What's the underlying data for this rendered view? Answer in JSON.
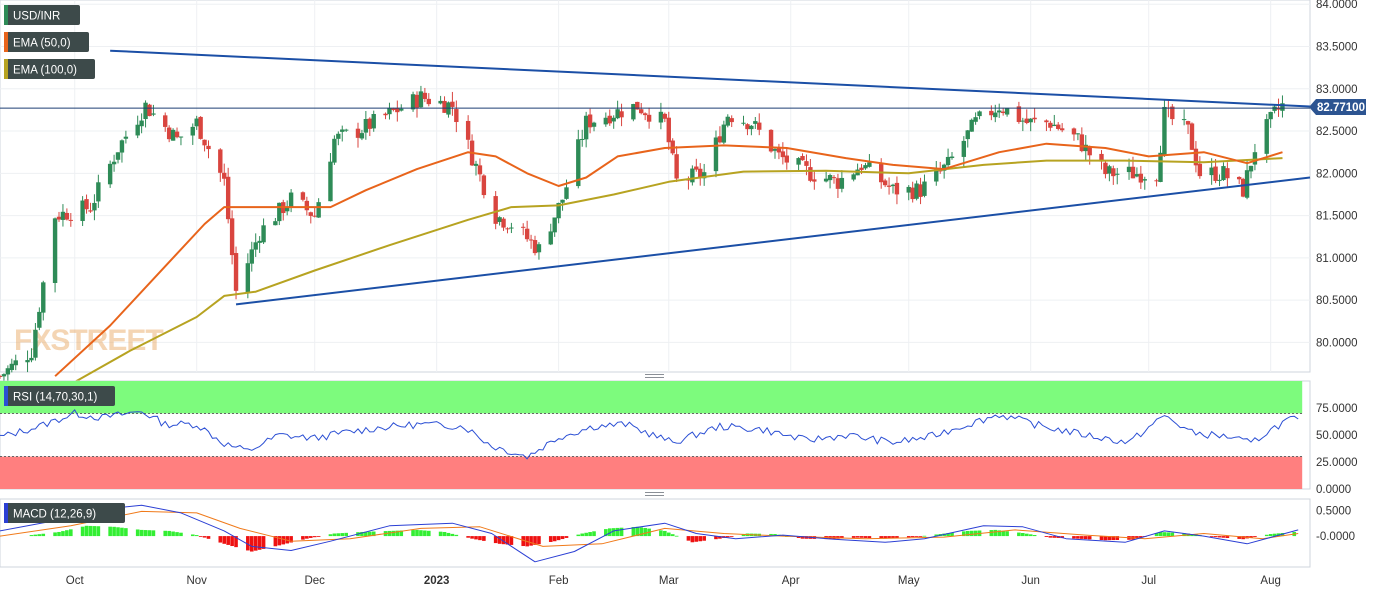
{
  "chart_data": [
    {
      "type": "candlestick",
      "symbol_label": "USD/INR",
      "last_price_label": "82.77100",
      "last_price": 82.771,
      "y_ticks": [
        "84.0000",
        "83.5000",
        "83.0000",
        "82.5000",
        "82.0000",
        "81.5000",
        "81.0000",
        "80.5000",
        "80.0000"
      ],
      "y_tick_values": [
        84.0,
        83.5,
        83.0,
        82.5,
        82.0,
        81.5,
        81.0,
        80.5,
        80.0
      ],
      "ylim": [
        79.65,
        84.05
      ],
      "x_labels": [
        "Oct",
        "Nov",
        "Dec",
        "2023",
        "Feb",
        "Mar",
        "Apr",
        "May",
        "Jun",
        "Jul",
        "Aug"
      ],
      "x_label_dates": [
        "2022-10-01",
        "2022-11-01",
        "2022-12-01",
        "2023-01-01",
        "2023-02-01",
        "2023-03-01",
        "2023-04-01",
        "2023-05-01",
        "2023-06-01",
        "2023-07-01",
        "2023-08-01"
      ],
      "x_range": [
        "2022-09-12",
        "2023-08-11"
      ],
      "price_points": [
        [
          "2022-09-12",
          79.6
        ],
        [
          "2022-09-20",
          79.9
        ],
        [
          "2022-09-26",
          81.5
        ],
        [
          "2022-10-05",
          81.6
        ],
        [
          "2022-10-12",
          82.3
        ],
        [
          "2022-10-19",
          82.8
        ],
        [
          "2022-10-21",
          82.7
        ],
        [
          "2022-10-27",
          82.4
        ],
        [
          "2022-11-01",
          82.6
        ],
        [
          "2022-11-04",
          82.3
        ],
        [
          "2022-11-08",
          81.9
        ],
        [
          "2022-11-11",
          80.6
        ],
        [
          "2022-11-17",
          81.3
        ],
        [
          "2022-11-25",
          81.7
        ],
        [
          "2022-12-01",
          81.5
        ],
        [
          "2022-12-06",
          82.4
        ],
        [
          "2022-12-12",
          82.5
        ],
        [
          "2022-12-20",
          82.7
        ],
        [
          "2022-12-28",
          82.9
        ],
        [
          "2023-01-05",
          82.8
        ],
        [
          "2023-01-10",
          82.2
        ],
        [
          "2023-01-16",
          81.5
        ],
        [
          "2023-01-20",
          81.4
        ],
        [
          "2023-01-27",
          81.1
        ],
        [
          "2023-02-02",
          81.7
        ],
        [
          "2023-02-08",
          82.6
        ],
        [
          "2023-02-14",
          82.7
        ],
        [
          "2023-02-21",
          82.8
        ],
        [
          "2023-02-28",
          82.6
        ],
        [
          "2023-03-03",
          81.9
        ],
        [
          "2023-03-10",
          82.0
        ],
        [
          "2023-03-16",
          82.7
        ],
        [
          "2023-03-22",
          82.6
        ],
        [
          "2023-03-29",
          82.2
        ],
        [
          "2023-04-06",
          82.0
        ],
        [
          "2023-04-13",
          81.9
        ],
        [
          "2023-04-19",
          82.1
        ],
        [
          "2023-04-27",
          81.8
        ],
        [
          "2023-05-04",
          81.8
        ],
        [
          "2023-05-11",
          82.1
        ],
        [
          "2023-05-18",
          82.6
        ],
        [
          "2023-05-24",
          82.8
        ],
        [
          "2023-05-31",
          82.6
        ],
        [
          "2023-06-06",
          82.6
        ],
        [
          "2023-06-13",
          82.4
        ],
        [
          "2023-06-20",
          82.0
        ],
        [
          "2023-06-27",
          82.0
        ],
        [
          "2023-07-03",
          82.0
        ],
        [
          "2023-07-05",
          82.7
        ],
        [
          "2023-07-11",
          82.5
        ],
        [
          "2023-07-14",
          82.0
        ],
        [
          "2023-07-20",
          82.0
        ],
        [
          "2023-07-25",
          81.8
        ],
        [
          "2023-07-28",
          82.3
        ],
        [
          "2023-08-02",
          82.7
        ],
        [
          "2023-08-04",
          82.8
        ]
      ],
      "ema_50": [
        [
          "2022-09-26",
          79.6
        ],
        [
          "2022-10-10",
          80.2
        ],
        [
          "2022-10-24",
          80.9
        ],
        [
          "2022-11-03",
          81.4
        ],
        [
          "2022-11-08",
          81.6
        ],
        [
          "2022-11-11",
          81.6
        ],
        [
          "2022-11-17",
          81.6
        ],
        [
          "2022-11-25",
          81.6
        ],
        [
          "2022-12-05",
          81.6
        ],
        [
          "2022-12-14",
          81.8
        ],
        [
          "2022-12-27",
          82.05
        ],
        [
          "2023-01-09",
          82.25
        ],
        [
          "2023-01-16",
          82.2
        ],
        [
          "2023-01-24",
          82.0
        ],
        [
          "2023-02-01",
          81.85
        ],
        [
          "2023-02-08",
          81.95
        ],
        [
          "2023-02-16",
          82.2
        ],
        [
          "2023-02-28",
          82.3
        ],
        [
          "2023-03-15",
          82.33
        ],
        [
          "2023-03-31",
          82.3
        ],
        [
          "2023-04-15",
          82.18
        ],
        [
          "2023-04-27",
          82.1
        ],
        [
          "2023-05-10",
          82.05
        ],
        [
          "2023-05-24",
          82.25
        ],
        [
          "2023-06-05",
          82.35
        ],
        [
          "2023-06-20",
          82.3
        ],
        [
          "2023-07-01",
          82.2
        ],
        [
          "2023-07-15",
          82.25
        ],
        [
          "2023-07-26",
          82.12
        ],
        [
          "2023-08-04",
          82.25
        ]
      ],
      "ema_100": [
        [
          "2022-09-26",
          79.4
        ],
        [
          "2022-10-15",
          79.9
        ],
        [
          "2022-11-01",
          80.3
        ],
        [
          "2022-11-08",
          80.55
        ],
        [
          "2022-11-16",
          80.6
        ],
        [
          "2022-12-01",
          80.85
        ],
        [
          "2022-12-20",
          81.15
        ],
        [
          "2023-01-09",
          81.45
        ],
        [
          "2023-01-20",
          81.6
        ],
        [
          "2023-02-01",
          81.62
        ],
        [
          "2023-02-15",
          81.75
        ],
        [
          "2023-03-01",
          81.9
        ],
        [
          "2023-03-20",
          82.02
        ],
        [
          "2023-04-10",
          82.03
        ],
        [
          "2023-05-01",
          82.0
        ],
        [
          "2023-05-20",
          82.1
        ],
        [
          "2023-06-05",
          82.15
        ],
        [
          "2023-06-25",
          82.15
        ],
        [
          "2023-07-15",
          82.13
        ],
        [
          "2023-08-04",
          82.18
        ]
      ],
      "trendline_upper": [
        [
          "2022-10-10",
          83.45
        ],
        [
          "2023-08-11",
          82.79
        ]
      ],
      "trendline_lower": [
        [
          "2022-11-11",
          80.45
        ],
        [
          "2023-08-11",
          81.95
        ]
      ],
      "horizontal_line": 82.771
    },
    {
      "type": "line",
      "indicator_label": "RSI (14,70,30,1)",
      "y_ticks": [
        "75.0000",
        "50.0000",
        "25.0000",
        "0.0000"
      ],
      "y_tick_values": [
        75,
        50,
        25,
        0
      ],
      "ylim": [
        0,
        100
      ],
      "overbought": 70,
      "oversold": 30,
      "rsi_points": [
        [
          "2022-09-12",
          48
        ],
        [
          "2022-09-22",
          58
        ],
        [
          "2022-10-01",
          70
        ],
        [
          "2022-10-08",
          66
        ],
        [
          "2022-10-18",
          72
        ],
        [
          "2022-10-24",
          60
        ],
        [
          "2022-11-01",
          60
        ],
        [
          "2022-11-08",
          42
        ],
        [
          "2022-11-14",
          35
        ],
        [
          "2022-11-22",
          50
        ],
        [
          "2022-12-01",
          47
        ],
        [
          "2022-12-08",
          52
        ],
        [
          "2022-12-18",
          57
        ],
        [
          "2022-12-28",
          60
        ],
        [
          "2023-01-08",
          58
        ],
        [
          "2023-01-15",
          40
        ],
        [
          "2023-01-24",
          30
        ],
        [
          "2023-02-01",
          48
        ],
        [
          "2023-02-10",
          58
        ],
        [
          "2023-02-18",
          60
        ],
        [
          "2023-03-02",
          43
        ],
        [
          "2023-03-14",
          58
        ],
        [
          "2023-03-25",
          55
        ],
        [
          "2023-04-05",
          45
        ],
        [
          "2023-04-15",
          50
        ],
        [
          "2023-04-27",
          43
        ],
        [
          "2023-05-06",
          48
        ],
        [
          "2023-05-16",
          60
        ],
        [
          "2023-05-24",
          69
        ],
        [
          "2023-06-04",
          58
        ],
        [
          "2023-06-15",
          50
        ],
        [
          "2023-06-26",
          43
        ],
        [
          "2023-07-05",
          68
        ],
        [
          "2023-07-12",
          52
        ],
        [
          "2023-07-22",
          48
        ],
        [
          "2023-07-27",
          42
        ],
        [
          "2023-08-01",
          55
        ],
        [
          "2023-08-06",
          65
        ],
        [
          "2023-08-08",
          63
        ]
      ]
    },
    {
      "type": "bar",
      "indicator_label": "MACD (12,26,9)",
      "y_ticks": [
        "0.5000",
        "-0.0000"
      ],
      "y_tick_values": [
        0.5,
        0.0
      ],
      "ylim": [
        -0.6,
        0.72
      ],
      "histogram": [
        [
          "2022-09-20",
          0.02
        ],
        [
          "2022-09-27",
          0.08
        ],
        [
          "2022-10-04",
          0.2
        ],
        [
          "2022-10-11",
          0.18
        ],
        [
          "2022-10-18",
          0.12
        ],
        [
          "2022-10-25",
          0.1
        ],
        [
          "2022-11-01",
          0.02
        ],
        [
          "2022-11-08",
          -0.15
        ],
        [
          "2022-11-15",
          -0.3
        ],
        [
          "2022-11-22",
          -0.18
        ],
        [
          "2022-11-29",
          -0.05
        ],
        [
          "2022-12-06",
          0.05
        ],
        [
          "2022-12-13",
          0.08
        ],
        [
          "2022-12-20",
          0.1
        ],
        [
          "2022-12-27",
          0.12
        ],
        [
          "2023-01-03",
          0.08
        ],
        [
          "2023-01-10",
          -0.05
        ],
        [
          "2023-01-17",
          -0.15
        ],
        [
          "2023-01-24",
          -0.2
        ],
        [
          "2023-01-31",
          -0.1
        ],
        [
          "2023-02-07",
          0.05
        ],
        [
          "2023-02-14",
          0.15
        ],
        [
          "2023-02-21",
          0.18
        ],
        [
          "2023-02-28",
          0.1
        ],
        [
          "2023-03-07",
          -0.12
        ],
        [
          "2023-03-14",
          -0.05
        ],
        [
          "2023-03-21",
          0.05
        ],
        [
          "2023-03-28",
          0.04
        ],
        [
          "2023-04-04",
          -0.05
        ],
        [
          "2023-04-11",
          -0.06
        ],
        [
          "2023-04-18",
          -0.03
        ],
        [
          "2023-04-25",
          -0.05
        ],
        [
          "2023-05-02",
          -0.02
        ],
        [
          "2023-05-09",
          0.04
        ],
        [
          "2023-05-16",
          0.1
        ],
        [
          "2023-05-23",
          0.12
        ],
        [
          "2023-05-30",
          0.06
        ],
        [
          "2023-06-06",
          -0.03
        ],
        [
          "2023-06-13",
          -0.05
        ],
        [
          "2023-06-20",
          -0.08
        ],
        [
          "2023-06-27",
          -0.07
        ],
        [
          "2023-07-04",
          0.08
        ],
        [
          "2023-07-11",
          0.05
        ],
        [
          "2023-07-18",
          -0.02
        ],
        [
          "2023-07-25",
          -0.06
        ],
        [
          "2023-08-01",
          0.04
        ],
        [
          "2023-08-07",
          0.08
        ]
      ],
      "macd_line": [
        [
          "2022-09-12",
          0.1
        ],
        [
          "2022-09-26",
          0.3
        ],
        [
          "2022-10-06",
          0.5
        ],
        [
          "2022-10-18",
          0.6
        ],
        [
          "2022-10-28",
          0.45
        ],
        [
          "2022-11-08",
          0.1
        ],
        [
          "2022-11-15",
          -0.2
        ],
        [
          "2022-11-25",
          -0.28
        ],
        [
          "2022-12-05",
          -0.1
        ],
        [
          "2022-12-20",
          0.2
        ],
        [
          "2023-01-05",
          0.25
        ],
        [
          "2023-01-15",
          0.05
        ],
        [
          "2023-01-26",
          -0.5
        ],
        [
          "2023-02-05",
          -0.3
        ],
        [
          "2023-02-15",
          0.1
        ],
        [
          "2023-02-28",
          0.25
        ],
        [
          "2023-03-08",
          0.05
        ],
        [
          "2023-03-18",
          -0.05
        ],
        [
          "2023-03-30",
          0.02
        ],
        [
          "2023-04-12",
          -0.06
        ],
        [
          "2023-04-25",
          -0.12
        ],
        [
          "2023-05-05",
          -0.05
        ],
        [
          "2023-05-20",
          0.2
        ],
        [
          "2023-05-30",
          0.18
        ],
        [
          "2023-06-10",
          -0.05
        ],
        [
          "2023-06-25",
          -0.12
        ],
        [
          "2023-07-05",
          0.1
        ],
        [
          "2023-07-15",
          0.0
        ],
        [
          "2023-07-26",
          -0.15
        ],
        [
          "2023-08-08",
          0.12
        ]
      ],
      "signal_line": [
        [
          "2022-09-12",
          0.0
        ],
        [
          "2022-09-30",
          0.2
        ],
        [
          "2022-10-18",
          0.48
        ],
        [
          "2022-11-01",
          0.45
        ],
        [
          "2022-11-12",
          0.15
        ],
        [
          "2022-11-25",
          -0.1
        ],
        [
          "2022-12-10",
          -0.05
        ],
        [
          "2022-12-28",
          0.15
        ],
        [
          "2023-01-12",
          0.18
        ],
        [
          "2023-01-28",
          -0.2
        ],
        [
          "2023-02-12",
          -0.15
        ],
        [
          "2023-02-28",
          0.15
        ],
        [
          "2023-03-15",
          0.05
        ],
        [
          "2023-03-30",
          0.0
        ],
        [
          "2023-04-20",
          -0.05
        ],
        [
          "2023-05-10",
          -0.02
        ],
        [
          "2023-05-28",
          0.12
        ],
        [
          "2023-06-15",
          0.02
        ],
        [
          "2023-06-30",
          -0.05
        ],
        [
          "2023-07-15",
          0.05
        ],
        [
          "2023-07-30",
          -0.05
        ],
        [
          "2023-08-08",
          0.05
        ]
      ]
    }
  ],
  "legend": {
    "ema50_label": "EMA (50,0)",
    "ema100_label": "EMA (100,0)"
  },
  "colors": {
    "candle_up": "#2e8b57",
    "candle_down": "#d9453f",
    "ema50": "#e8641b",
    "ema100": "#b7a321",
    "trendline": "#1b4fa6",
    "rsi_line": "#2b4fd4",
    "overbought_zone": "#7dfb7d",
    "oversold_zone": "#ff7f7f",
    "macd_line": "#2b3fd4",
    "signal_line": "#f07a1a",
    "hist_pos": "#33ee33",
    "hist_neg": "#ee1111",
    "label_bg": "#3d4a4a"
  },
  "watermark": "FXSTREET"
}
